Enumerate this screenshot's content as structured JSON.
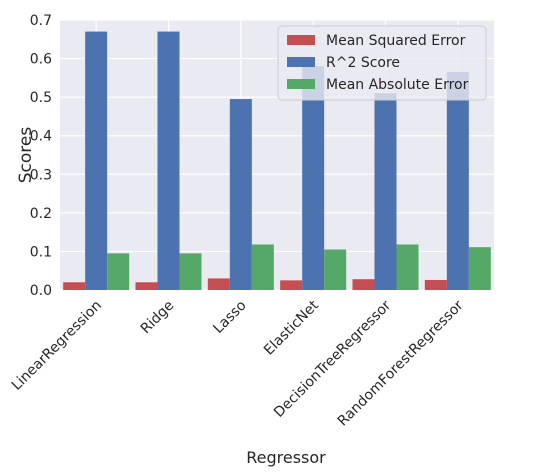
{
  "chart_data": {
    "type": "bar",
    "categories": [
      "LinearRegression",
      "Ridge",
      "Lasso",
      "ElasticNet",
      "DecisionTreeRegressor",
      "RandomForestRegressor"
    ],
    "series": [
      {
        "name": "Mean Squared Error",
        "color": "#c44e52",
        "values": [
          0.02,
          0.02,
          0.03,
          0.025,
          0.028,
          0.026
        ]
      },
      {
        "name": "R^2 Score",
        "color": "#4c72b0",
        "values": [
          0.67,
          0.67,
          0.495,
          0.58,
          0.51,
          0.565
        ]
      },
      {
        "name": "Mean Absolute Error",
        "color": "#55a868",
        "values": [
          0.095,
          0.095,
          0.118,
          0.105,
          0.118,
          0.111
        ]
      }
    ],
    "xlabel": "Regressor",
    "ylabel": "Scores",
    "ylim": [
      0,
      0.7
    ],
    "yticks": [
      "0.0",
      "0.1",
      "0.2",
      "0.3",
      "0.4",
      "0.5",
      "0.6",
      "0.7"
    ],
    "grid": true,
    "legend_position": "top-right",
    "background_color": "#eaeaf2"
  }
}
